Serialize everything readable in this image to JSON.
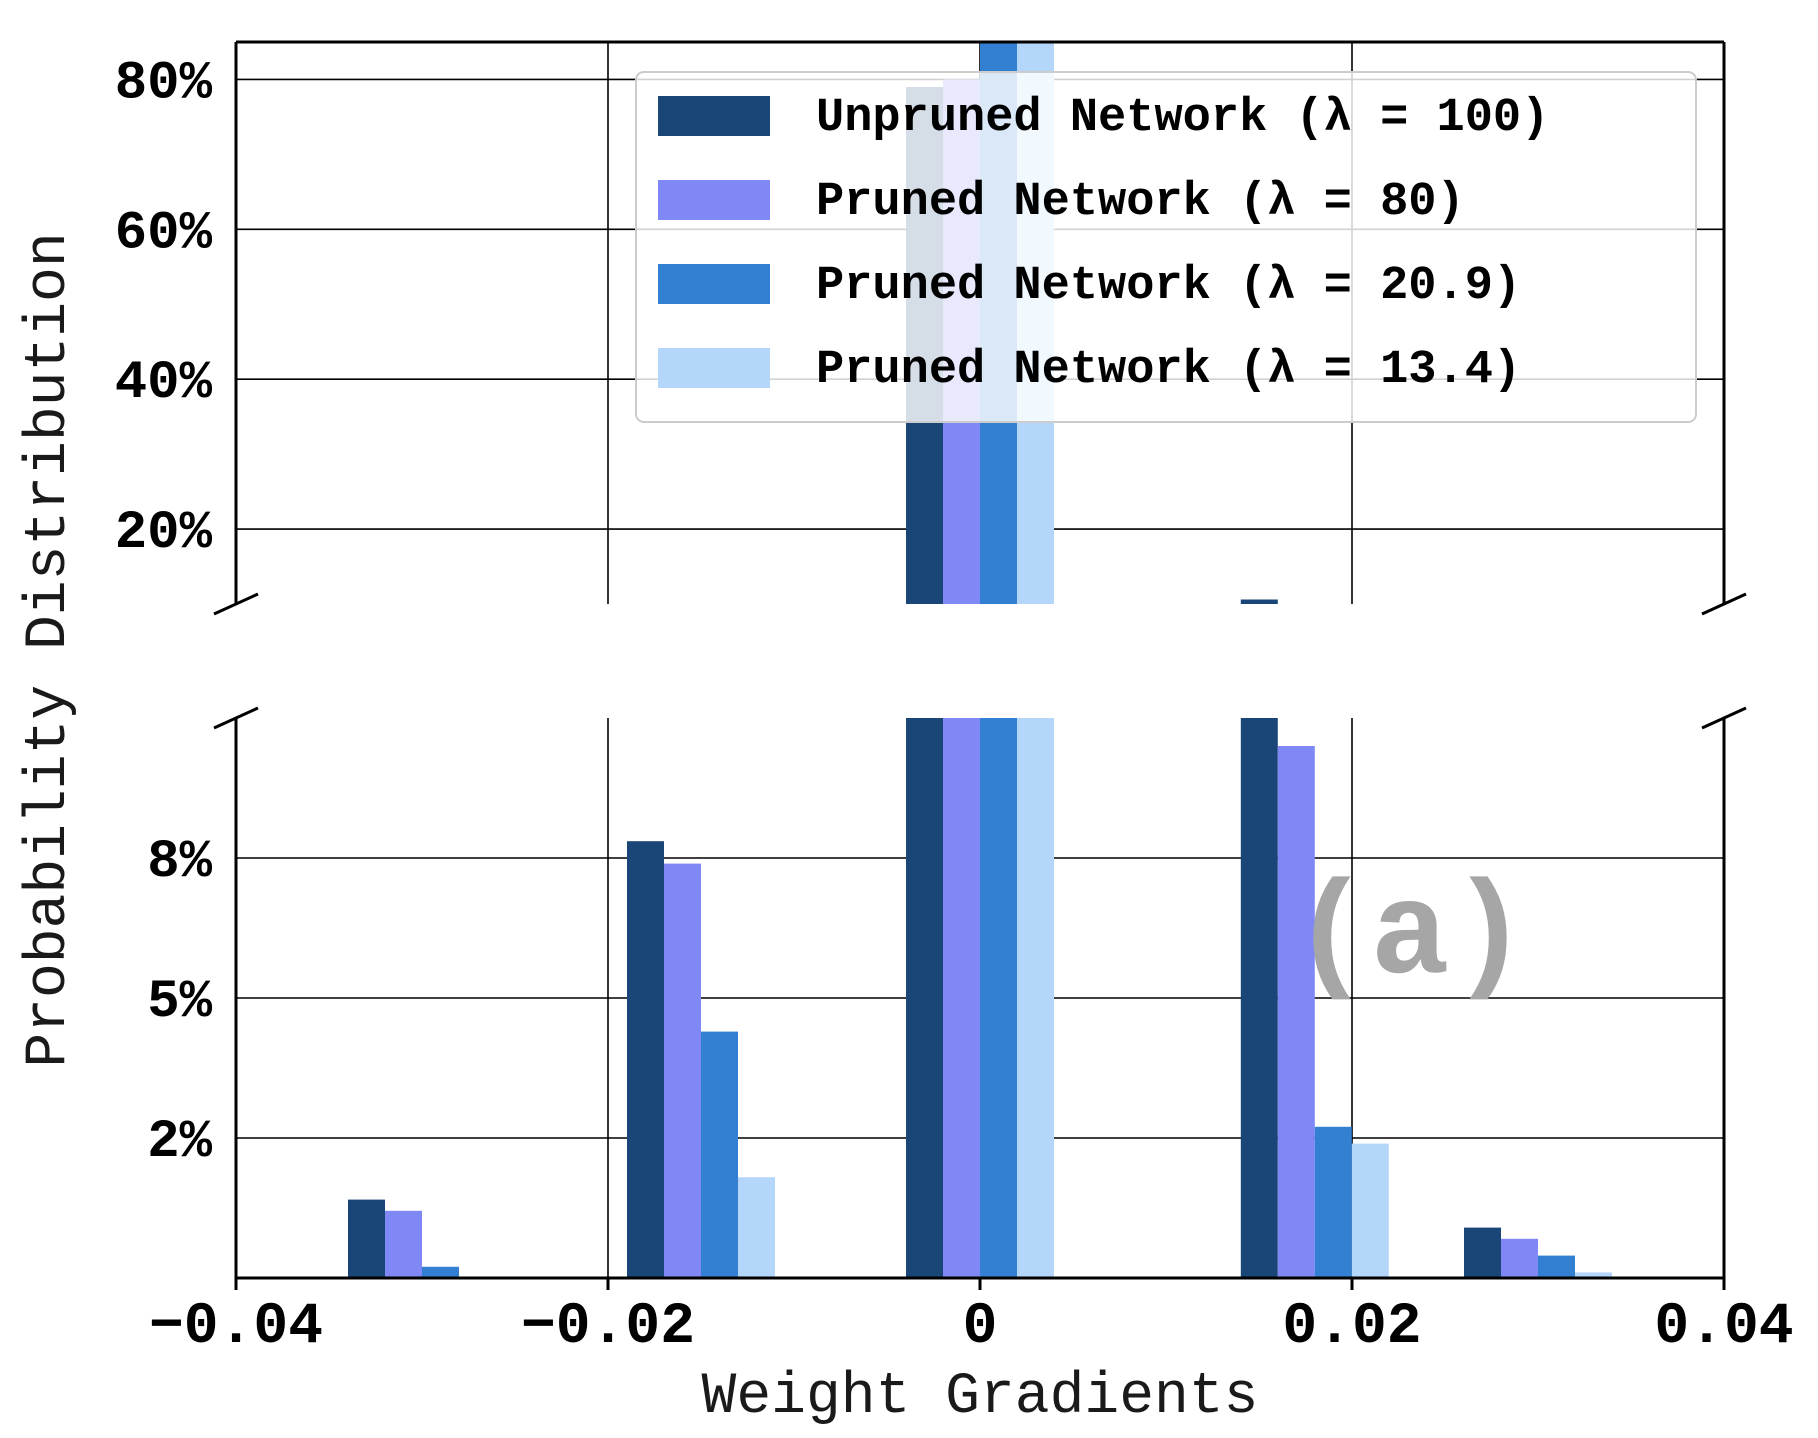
{
  "chart_data": {
    "type": "bar",
    "broken_y_axis": true,
    "xlabel": "Weight Gradients",
    "ylabel": "Probability Distribution",
    "x_ticks": [
      "-0.04",
      "-0.02",
      "0",
      "0.02",
      "0.04"
    ],
    "x_tick_values": [
      -0.04,
      -0.02,
      0,
      0.02,
      0.04
    ],
    "xlim": [
      -0.04,
      0.04
    ],
    "upper_panel": {
      "ylim": [
        10,
        85
      ],
      "y_ticks": [
        "20%",
        "40%",
        "60%",
        "80%"
      ],
      "y_tick_values": [
        20,
        40,
        60,
        80
      ]
    },
    "lower_panel": {
      "ylim": [
        0,
        10
      ],
      "y_ticks": [
        "2%",
        "5%",
        "8%"
      ],
      "y_tick_values": [
        2.5,
        5,
        7.5
      ]
    },
    "grid": true,
    "legend_position": "top-right",
    "annotation": "(a)",
    "bin_centers": [
      -0.03,
      -0.015,
      0,
      0.018,
      0.03
    ],
    "series": [
      {
        "name": "Unpruned Network (λ = 100)",
        "color": "#1a4577",
        "values": [
          1.4,
          7.8,
          79,
          10.6,
          0.9
        ]
      },
      {
        "name": "Pruned Network (λ = 80)",
        "color": "#7f88f5",
        "values": [
          1.2,
          7.4,
          80,
          9.5,
          0.7
        ]
      },
      {
        "name": "Pruned Network (λ = 20.9)",
        "color": "#3380d2",
        "values": [
          0.2,
          4.4,
          86,
          2.7,
          0.4
        ]
      },
      {
        "name": "Pruned Network (λ = 13.4)",
        "color": "#b3d6fa",
        "values": [
          0,
          1.8,
          86,
          2.4,
          0.1
        ]
      }
    ]
  }
}
